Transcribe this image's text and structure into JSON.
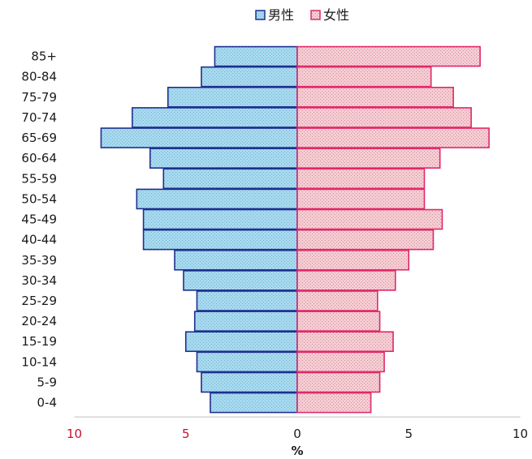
{
  "chart_data": {
    "type": "bar",
    "orientation": "horizontal-pyramid",
    "categories": [
      "85+",
      "80-84",
      "75-79",
      "70-74",
      "65-69",
      "60-64",
      "55-59",
      "50-54",
      "45-49",
      "40-44",
      "35-39",
      "30-34",
      "25-29",
      "20-24",
      "15-19",
      "10-14",
      "5-9",
      "0-4"
    ],
    "series": [
      {
        "name": "男性",
        "side": "left",
        "color": "#1f2f8f",
        "fill": "#9dd3ea",
        "values": [
          3.7,
          4.3,
          5.8,
          7.4,
          8.8,
          6.6,
          6.0,
          7.2,
          6.9,
          6.9,
          5.5,
          5.1,
          4.5,
          4.6,
          5.0,
          4.5,
          4.3,
          3.9
        ]
      },
      {
        "name": "女性",
        "side": "right",
        "color": "#e0286a",
        "fill": "#f1c6cc",
        "values": [
          8.2,
          6.0,
          7.0,
          7.8,
          8.6,
          6.4,
          5.7,
          5.7,
          6.5,
          6.1,
          5.0,
          4.4,
          3.6,
          3.7,
          4.3,
          3.9,
          3.7,
          3.3
        ]
      }
    ],
    "xlabel": "%",
    "xlim": [
      -10,
      10
    ],
    "x_ticks": [
      {
        "value": -10,
        "label": "10"
      },
      {
        "value": -5,
        "label": "5"
      },
      {
        "value": 0,
        "label": "0"
      },
      {
        "value": 5,
        "label": "5"
      },
      {
        "value": 10,
        "label": "10"
      }
    ],
    "colors": {
      "negative_tick_label": "#c8102e",
      "positive_tick_label": "#1a1a1a"
    },
    "legend_position": "top-center",
    "grid": false
  }
}
